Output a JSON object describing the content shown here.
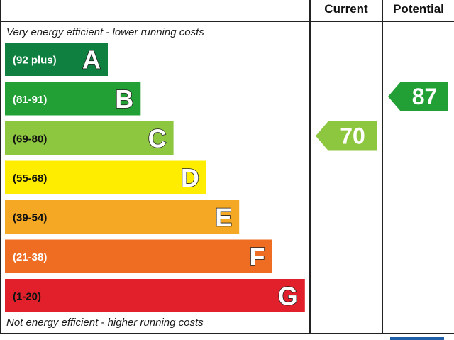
{
  "header": {
    "current_label": "Current",
    "potential_label": "Potential"
  },
  "notes": {
    "top": "Very energy efficient - lower running costs",
    "bottom": "Not energy efficient - higher running costs"
  },
  "chart_data": {
    "type": "bar",
    "categories": [
      "A",
      "B",
      "C",
      "D",
      "E",
      "F",
      "G"
    ],
    "ranges": [
      "(92 plus)",
      "(81-91)",
      "(69-80)",
      "(55-68)",
      "(39-54)",
      "(21-38)",
      "(1-20)"
    ],
    "colors": [
      "#0f8040",
      "#22a036",
      "#8dc63f",
      "#ffed00",
      "#f4a823",
      "#ef6d22",
      "#e2202b"
    ],
    "range_text_colors": [
      "#ffffff",
      "#ffffff",
      "#111111",
      "#111111",
      "#111111",
      "#ffffff",
      "#111111"
    ],
    "current": {
      "value": 70,
      "band": "C",
      "color": "#8dc63f"
    },
    "potential": {
      "value": 87,
      "band": "B",
      "color": "#22a036"
    }
  }
}
